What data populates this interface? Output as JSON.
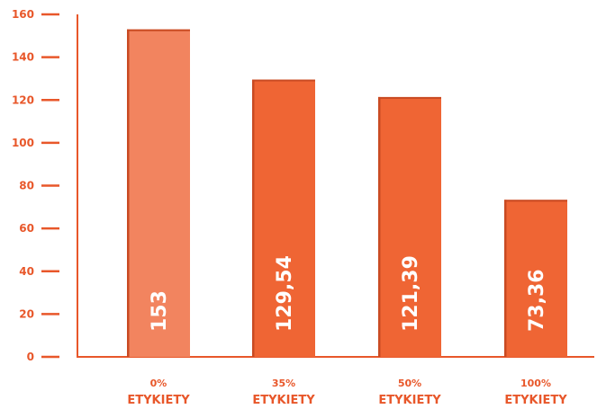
{
  "chart_data": {
    "type": "bar",
    "categories": [
      [
        "0%",
        "ETYKIETY"
      ],
      [
        "35%",
        "ETYKIETY"
      ],
      [
        "50%",
        "ETYKIETY"
      ],
      [
        "100%",
        "ETYKIETY"
      ]
    ],
    "values": [
      153,
      129.54,
      121.39,
      73.36
    ],
    "value_labels": [
      "153",
      "129,54",
      "121,39",
      "73,36"
    ],
    "y_ticks": [
      "0",
      "20",
      "40",
      "60",
      "80",
      "100",
      "120",
      "140",
      "160"
    ],
    "ylim": [
      0,
      160
    ],
    "title": "",
    "xlabel": "",
    "ylabel": "",
    "grid": false,
    "legend": "none"
  },
  "colors": {
    "axis": "#e8572a",
    "text": "#e8572a",
    "bar_highlight": "#f2845f",
    "bar": "#ef6534",
    "bar_edge": "#c94a22",
    "value_text": "#ffffff"
  }
}
